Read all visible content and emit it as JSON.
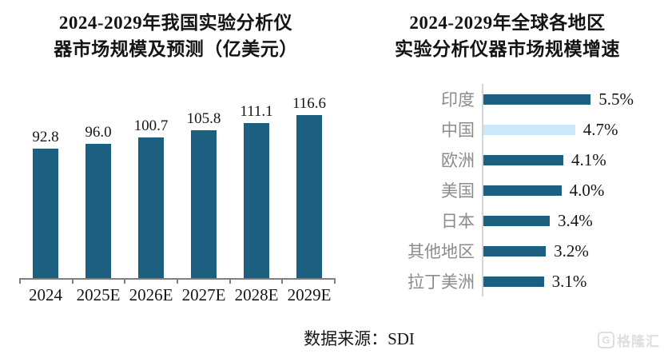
{
  "page": {
    "background": "#ffffff"
  },
  "chart_data": [
    {
      "type": "bar",
      "orientation": "vertical",
      "title": "2024-2029年我国实验分析仪器市场规模及预测（亿美元）",
      "title_lines": [
        "2024-2029年我国实验分析仪",
        "器市场规模及预测（亿美元）"
      ],
      "categories": [
        "2024",
        "2025E",
        "2026E",
        "2027E",
        "2028E",
        "2029E"
      ],
      "values": [
        92.8,
        96.0,
        100.7,
        105.8,
        111.1,
        116.6
      ],
      "value_labels": [
        "92.8",
        "96.0",
        "100.7",
        "105.8",
        "111.1",
        "116.6"
      ],
      "unit": "亿美元",
      "ylim": [
        0,
        120
      ],
      "grid": false,
      "legend": "none",
      "bar_color": "#1d5f80",
      "axis_color": "#7f7f7f"
    },
    {
      "type": "bar",
      "orientation": "horizontal",
      "title": "2024-2029年全球各地区实验分析仪器市场规模增速",
      "title_lines": [
        "2024-2029年全球各地区",
        "实验分析仪器市场规模增速"
      ],
      "categories": [
        "印度",
        "中国",
        "欧洲",
        "美国",
        "日本",
        "其他地区",
        "拉丁美洲"
      ],
      "values": [
        5.5,
        4.7,
        4.1,
        4.0,
        3.4,
        3.2,
        3.1
      ],
      "value_labels": [
        "5.5%",
        "4.7%",
        "4.1%",
        "4.0%",
        "3.4%",
        "3.2%",
        "3.1%"
      ],
      "xlim": [
        0,
        6
      ],
      "grid": false,
      "legend": "none",
      "bar_color": "#1d5f80",
      "highlight_index": 1,
      "highlight_color": "#cbe8f7",
      "category_label_color": "#8c8c8c",
      "axis_color": "#d2d6da"
    }
  ],
  "footer": {
    "source_label": "数据来源：SDI"
  },
  "watermark": {
    "brand": "格隆汇",
    "icon_letter": "G"
  }
}
